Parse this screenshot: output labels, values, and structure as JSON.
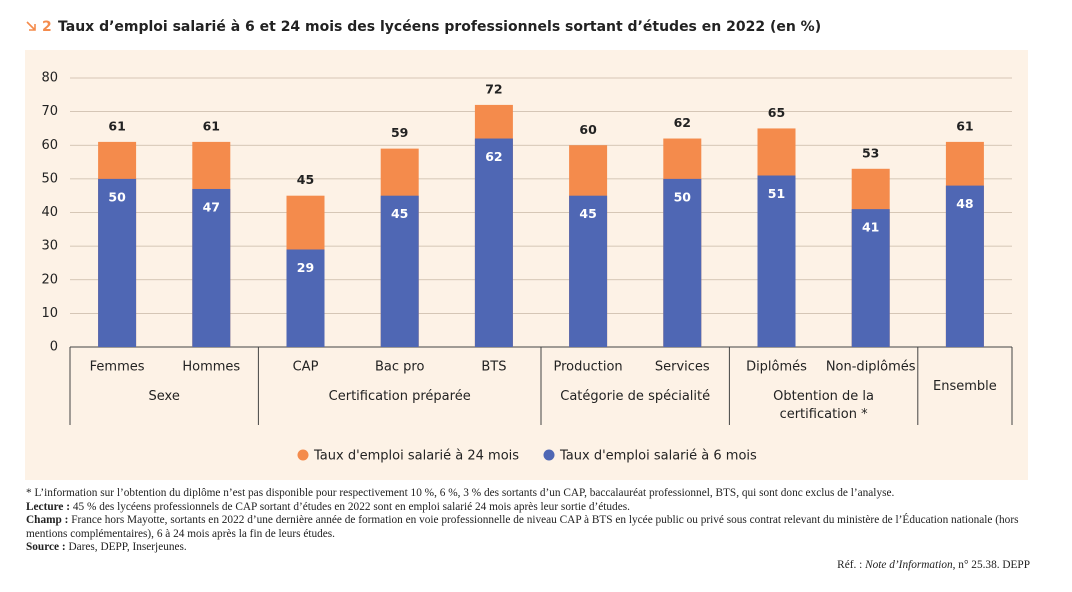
{
  "chart_data": {
    "type": "bar",
    "number": "2",
    "title": "Taux d’emploi salarié à 6 et 24 mois des lycéens professionnels sortant d’études en 2022 (en %)",
    "groups": [
      {
        "name": "Sexe",
        "categories": [
          "Femmes",
          "Hommes"
        ]
      },
      {
        "name": "Certification préparée",
        "categories": [
          "CAP",
          "Bac pro",
          "BTS"
        ]
      },
      {
        "name": "Catégorie de spécialité",
        "categories": [
          "Production",
          "Services"
        ]
      },
      {
        "name": "Obtention de la certification *",
        "categories": [
          "Diplômés",
          "Non-diplômés"
        ]
      },
      {
        "name": "Ensemble",
        "categories": [
          null
        ]
      }
    ],
    "series": [
      {
        "name": "Taux d'emploi salarié à 24 mois",
        "color": "#f48b4c",
        "values": [
          61,
          61,
          45,
          59,
          72,
          60,
          62,
          65,
          53,
          61
        ]
      },
      {
        "name": "Taux d'emploi salarié à 6 mois",
        "color": "#4f67b4",
        "values": [
          50,
          47,
          29,
          45,
          62,
          45,
          50,
          51,
          41,
          48
        ]
      }
    ],
    "ylim": [
      0,
      80
    ],
    "yticks": [
      0,
      10,
      20,
      30,
      40,
      50,
      60,
      70,
      80
    ],
    "grid": true,
    "legend": "bottom",
    "notes": [
      {
        "label": "",
        "text": "* L’information sur l’obtention du diplôme n’est pas disponible pour respectivement 10 %, 6 %, 3 % des sortants d’un CAP, baccalauréat professionnel, BTS, qui sont donc exclus de l’analyse."
      },
      {
        "label": "Lecture :",
        "text": " 45 % des lycéens professionnels de CAP sortant d’études en 2022 sont en emploi salarié 24 mois après leur sortie d’études."
      },
      {
        "label": "Champ :",
        "text": " France hors Mayotte, sortants en 2022 d’une dernière année de formation en voie professionnelle de niveau CAP à BTS en lycée public ou privé sous contrat relevant du ministère de l’Éducation nationale (hors mentions complémentaires), 6 à 24 mois après la fin de leurs études."
      },
      {
        "label": "Source :",
        "text": " Dares, DEPP, Inserjeunes."
      }
    ],
    "ref": {
      "prefix": "Réf. : ",
      "title": "Note d’Information",
      "suffix": ", n° 25.38. DEPP"
    }
  }
}
